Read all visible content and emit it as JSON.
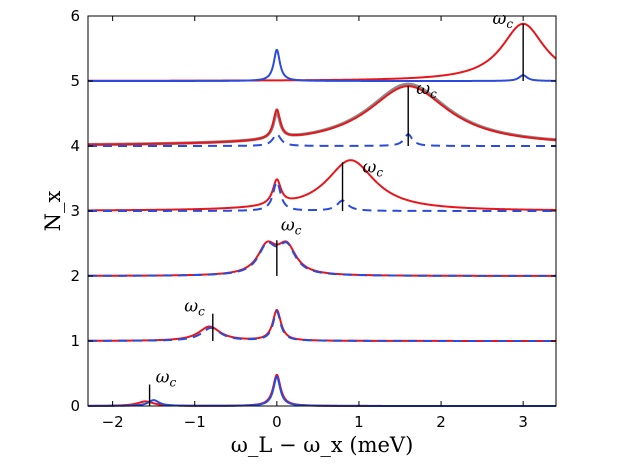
{
  "chart_data": {
    "type": "line",
    "title": "",
    "xlabel": "ω_L − ω_x (meV)",
    "ylabel": "N_x",
    "xlim": [
      -2.3,
      3.4
    ],
    "ylim": [
      0,
      6
    ],
    "xticks": [
      "−2",
      "−1",
      "0",
      "1",
      "2",
      "3"
    ],
    "xtick_values": [
      -2,
      -1,
      0,
      1,
      2,
      3
    ],
    "yticks": [
      "0",
      "1",
      "2",
      "3",
      "4",
      "5",
      "6"
    ],
    "ytick_values": [
      0,
      1,
      2,
      3,
      4,
      5,
      6
    ],
    "annotation_label": "ω",
    "annotation_subscript": "c",
    "colors": {
      "red": "#e8161b",
      "blue": "#2a4bdb",
      "gray": "#8c8c8c",
      "marker": "#000000"
    },
    "traces": [
      {
        "baseline": 0,
        "omega_c": -1.55,
        "red": {
          "peaks": [
            [
              0,
              0.48,
              0.055
            ],
            [
              -1.6,
              0.07,
              0.12
            ]
          ]
        },
        "blue": {
          "dashed": false,
          "peaks": [
            [
              0,
              0.45,
              0.05
            ],
            [
              -1.5,
              0.09,
              0.08
            ]
          ]
        }
      },
      {
        "baseline": 1,
        "omega_c": -0.78,
        "red": {
          "peaks": [
            [
              0,
              0.47,
              0.06
            ],
            [
              -0.82,
              0.22,
              0.16
            ]
          ]
        },
        "blue": {
          "dashed": true,
          "peaks": [
            [
              0,
              0.45,
              0.055
            ],
            [
              -0.8,
              0.2,
              0.14
            ]
          ]
        }
      },
      {
        "baseline": 2,
        "omega_c": 0,
        "red": {
          "peaks": [
            [
              -0.12,
              0.42,
              0.14
            ],
            [
              0.12,
              0.42,
              0.14
            ]
          ]
        },
        "blue": {
          "dashed": true,
          "peaks": [
            [
              -0.12,
              0.42,
              0.13
            ],
            [
              0.12,
              0.42,
              0.13
            ]
          ]
        }
      },
      {
        "baseline": 3,
        "omega_c": 0.8,
        "red": {
          "peaks": [
            [
              0,
              0.38,
              0.06
            ],
            [
              0.9,
              0.78,
              0.36
            ]
          ]
        },
        "blue": {
          "dashed": true,
          "peaks": [
            [
              0,
              0.45,
              0.055
            ],
            [
              0.8,
              0.16,
              0.08
            ]
          ]
        }
      },
      {
        "baseline": 4,
        "omega_c": 1.6,
        "red": {
          "peaks": [
            [
              0,
              0.45,
              0.05
            ],
            [
              1.6,
              0.92,
              0.6
            ]
          ]
        },
        "gray": {
          "peaks": [
            [
              1.6,
              0.95,
              0.6
            ],
            [
              0,
              0.4,
              0.05
            ]
          ]
        },
        "blue": {
          "dashed": true,
          "peaks": [
            [
              0,
              0.18,
              0.06
            ],
            [
              1.6,
              0.18,
              0.06
            ]
          ]
        }
      },
      {
        "baseline": 5,
        "omega_c": 3,
        "red": {
          "peaks": [
            [
              3,
              0.88,
              0.32
            ]
          ]
        },
        "blue": {
          "dashed": false,
          "peaks": [
            [
              0,
              0.48,
              0.045
            ],
            [
              3,
              0.09,
              0.06
            ]
          ]
        }
      }
    ]
  }
}
